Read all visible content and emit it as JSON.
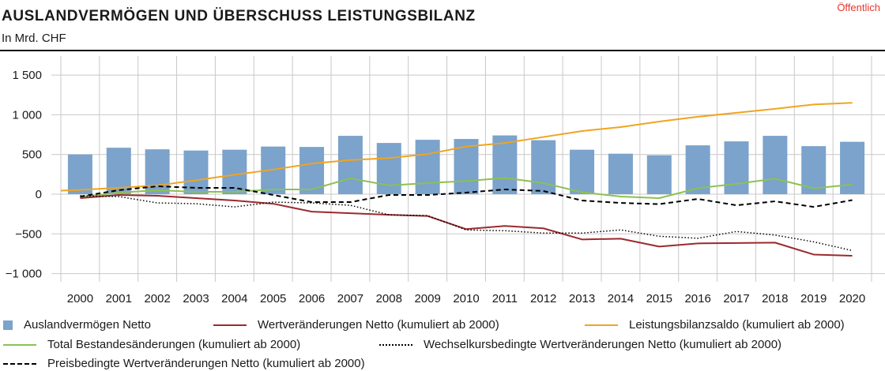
{
  "header": {
    "title": "AUSLANDVERMÖGEN UND ÜBERSCHUSS LEISTUNGSBILANZ",
    "subtitle": "In Mrd. CHF",
    "classification": "Öffentlich"
  },
  "colors": {
    "bars": "#7ba3cb",
    "wertveraenderungen": "#9b2a2e",
    "leistungsbilanz": "#f0a420",
    "bestand": "#8cc152",
    "wechselkurs": "#000000",
    "preis": "#000000",
    "grid": "#c8c8c8"
  },
  "chart_data": {
    "type": "bar",
    "title": "AUSLANDVERMÖGEN UND ÜBERSCHUSS LEISTUNGSBILANZ",
    "ylabel": "In Mrd. CHF",
    "ylim": [
      -1100,
      1650
    ],
    "yticks": [
      1500,
      1000,
      500,
      0,
      -500,
      -1000
    ],
    "ytick_labels": [
      "1 500",
      "1 000",
      "500",
      "0",
      "−500",
      "−1 000"
    ],
    "categories": [
      "2000",
      "2001",
      "2002",
      "2003",
      "2004",
      "2005",
      "2006",
      "2007",
      "2008",
      "2009",
      "2010",
      "2011",
      "2012",
      "2013",
      "2014",
      "2015",
      "2016",
      "2017",
      "2018",
      "2019",
      "2020"
    ],
    "grid": true,
    "legend_position": "bottom",
    "series": [
      {
        "name": "Auslandvermögen Netto",
        "kind": "bar",
        "values": [
          500,
          585,
          565,
          550,
          560,
          600,
          595,
          735,
          645,
          685,
          695,
          740,
          680,
          560,
          510,
          490,
          615,
          665,
          735,
          605,
          660
        ]
      },
      {
        "name": "Wertveränderungen Netto (kumuliert ab 2000)",
        "kind": "line",
        "style": "solid",
        "values": [
          -50,
          -10,
          -20,
          -50,
          -80,
          -120,
          -220,
          -240,
          -260,
          -275,
          -440,
          -400,
          -430,
          -570,
          -560,
          -660,
          -620,
          -615,
          -610,
          -760,
          -775
        ]
      },
      {
        "name": "Leistungsbilanzsaldo (kumuliert ab 2000)",
        "kind": "line",
        "style": "solid",
        "values": [
          55,
          80,
          110,
          175,
          245,
          310,
          385,
          430,
          455,
          505,
          600,
          645,
          720,
          795,
          845,
          915,
          975,
          1025,
          1075,
          1130,
          1150
        ]
      },
      {
        "name": "Total Bestandesänderungen (kumuliert ab 2000)",
        "kind": "line",
        "style": "solid",
        "values": [
          -40,
          20,
          50,
          30,
          30,
          60,
          60,
          200,
          110,
          140,
          165,
          205,
          140,
          25,
          -30,
          -50,
          75,
          130,
          195,
          75,
          120
        ]
      },
      {
        "name": "Wechselkursbedingte Wertveränderungen Netto (kumuliert ab 2000)",
        "kind": "line",
        "style": "dotted",
        "values": [
          -20,
          -30,
          -110,
          -120,
          -160,
          -100,
          -110,
          -140,
          -260,
          -270,
          -450,
          -460,
          -490,
          -490,
          -450,
          -530,
          -555,
          -470,
          -515,
          -600,
          -710
        ]
      },
      {
        "name": "Preisbedingte Wertveränderungen Netto (kumuliert ab 2000)",
        "kind": "line",
        "style": "dashed",
        "values": [
          -30,
          50,
          100,
          80,
          80,
          -10,
          -100,
          -100,
          -10,
          -10,
          20,
          60,
          40,
          -80,
          -110,
          -125,
          -60,
          -140,
          -90,
          -160,
          -75
        ]
      }
    ]
  }
}
